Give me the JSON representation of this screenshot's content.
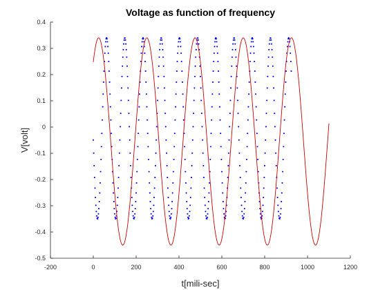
{
  "chart_data": {
    "type": "line",
    "title": "Voltage as function of  frequency",
    "xlabel": "t[mili-sec]",
    "ylabel": "V[volt]",
    "xlim": [
      -200,
      1200
    ],
    "ylim": [
      -0.5,
      0.4
    ],
    "xticks": [
      -200,
      0,
      200,
      400,
      600,
      800,
      1000,
      1200
    ],
    "yticks": [
      -0.5,
      -0.4,
      -0.3,
      -0.2,
      -0.1,
      0,
      0.1,
      0.2,
      0.3,
      0.4
    ],
    "grid": false,
    "series": [
      {
        "style": "dotted",
        "color": "#0000ff",
        "x_start": 0,
        "x_end": 925,
        "x_step": 2,
        "offset": -0.005,
        "amplitude": 0.345,
        "period": 85,
        "peak_at": 62
      },
      {
        "style": "solid",
        "color": "#cc0000",
        "x_start": 0,
        "x_end": 1100,
        "offset": -0.055,
        "amplitude": 0.395,
        "period": 225,
        "peak_at": 25
      }
    ]
  }
}
